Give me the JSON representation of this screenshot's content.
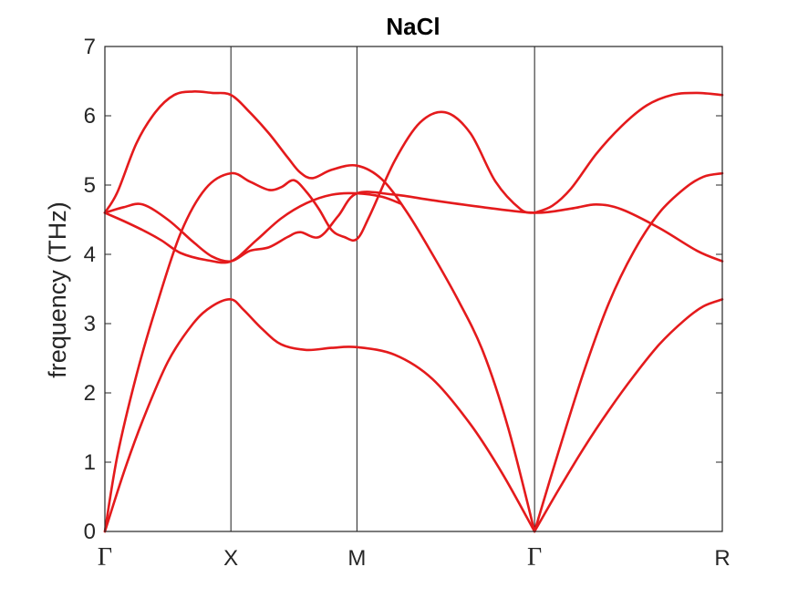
{
  "chart_data": {
    "type": "line",
    "title": "NaCl",
    "xlabel": "",
    "ylabel": "frequency (THz)",
    "ylim": [
      0,
      7
    ],
    "yticks": [
      0,
      1,
      2,
      3,
      4,
      5,
      6,
      7
    ],
    "xlim": [
      0,
      4.9
    ],
    "xticks": [
      {
        "x": 0,
        "label": "Γ"
      },
      {
        "x": 1,
        "label": "X"
      },
      {
        "x": 2,
        "label": "M"
      },
      {
        "x": 3.41,
        "label": "Γ"
      },
      {
        "x": 4.9,
        "label": "R"
      }
    ],
    "vlines": [
      1,
      2,
      3.41
    ],
    "line_color": "#e41a1c",
    "grid": false,
    "series": [
      {
        "values": [
          [
            0,
            0
          ],
          [
            0.15,
            0.85
          ],
          [
            0.3,
            1.6
          ],
          [
            0.5,
            2.45
          ],
          [
            0.7,
            3.0
          ],
          [
            0.85,
            3.25
          ],
          [
            1.0,
            3.35
          ],
          [
            1.1,
            3.2
          ],
          [
            1.25,
            2.92
          ],
          [
            1.4,
            2.7
          ],
          [
            1.6,
            2.62
          ],
          [
            1.8,
            2.65
          ],
          [
            2.0,
            2.66
          ],
          [
            2.3,
            2.55
          ],
          [
            2.6,
            2.2
          ],
          [
            2.9,
            1.55
          ],
          [
            3.15,
            0.85
          ],
          [
            3.41,
            0
          ]
        ]
      },
      {
        "values": [
          [
            0,
            0
          ],
          [
            0.1,
            1.1
          ],
          [
            0.25,
            2.25
          ],
          [
            0.4,
            3.2
          ],
          [
            0.6,
            4.3
          ],
          [
            0.8,
            4.95
          ],
          [
            1.0,
            5.17
          ],
          [
            1.15,
            5.05
          ],
          [
            1.3,
            4.93
          ],
          [
            1.4,
            4.97
          ],
          [
            1.5,
            5.07
          ],
          [
            1.6,
            4.9
          ],
          [
            1.7,
            4.65
          ],
          [
            1.8,
            4.35
          ],
          [
            1.9,
            4.25
          ],
          [
            2.0,
            4.22
          ],
          [
            2.1,
            4.55
          ],
          [
            2.3,
            5.35
          ],
          [
            2.5,
            5.9
          ],
          [
            2.7,
            6.05
          ],
          [
            2.9,
            5.75
          ],
          [
            3.1,
            5.05
          ],
          [
            3.3,
            4.65
          ],
          [
            3.41,
            4.6
          ]
        ]
      },
      {
        "values": [
          [
            0,
            4.6
          ],
          [
            0.15,
            4.68
          ],
          [
            0.3,
            4.72
          ],
          [
            0.5,
            4.5
          ],
          [
            0.7,
            4.18
          ],
          [
            0.85,
            3.97
          ],
          [
            1.0,
            3.9
          ],
          [
            1.15,
            4.05
          ],
          [
            1.3,
            4.1
          ],
          [
            1.45,
            4.25
          ],
          [
            1.55,
            4.32
          ],
          [
            1.7,
            4.25
          ],
          [
            1.85,
            4.55
          ],
          [
            2.0,
            4.88
          ],
          [
            2.3,
            4.86
          ],
          [
            2.6,
            4.78
          ],
          [
            3.0,
            4.68
          ],
          [
            3.41,
            4.6
          ],
          [
            3.7,
            4.66
          ],
          [
            3.9,
            4.72
          ],
          [
            4.1,
            4.65
          ],
          [
            4.4,
            4.38
          ],
          [
            4.7,
            4.05
          ],
          [
            4.9,
            3.9
          ]
        ]
      },
      {
        "values": [
          [
            0,
            4.6
          ],
          [
            0.15,
            4.48
          ],
          [
            0.3,
            4.35
          ],
          [
            0.45,
            4.2
          ],
          [
            0.6,
            4.02
          ],
          [
            0.8,
            3.92
          ],
          [
            1.0,
            3.9
          ],
          [
            1.2,
            4.2
          ],
          [
            1.4,
            4.52
          ],
          [
            1.6,
            4.74
          ],
          [
            1.8,
            4.86
          ],
          [
            2.0,
            4.88
          ],
          [
            2.2,
            4.83
          ],
          [
            2.35,
            4.73
          ]
        ]
      },
      {
        "values": [
          [
            0,
            4.6
          ],
          [
            0.1,
            4.9
          ],
          [
            0.25,
            5.6
          ],
          [
            0.4,
            6.05
          ],
          [
            0.55,
            6.3
          ],
          [
            0.7,
            6.35
          ],
          [
            0.85,
            6.33
          ],
          [
            1.0,
            6.3
          ],
          [
            1.15,
            6.05
          ],
          [
            1.3,
            5.75
          ],
          [
            1.45,
            5.4
          ],
          [
            1.55,
            5.18
          ],
          [
            1.65,
            5.1
          ],
          [
            1.8,
            5.22
          ],
          [
            2.0,
            5.28
          ],
          [
            2.2,
            5.08
          ],
          [
            2.4,
            4.6
          ],
          [
            2.6,
            4.0
          ],
          [
            2.8,
            3.35
          ],
          [
            3.0,
            2.6
          ],
          [
            3.2,
            1.5
          ],
          [
            3.41,
            0
          ]
        ]
      },
      {
        "values": [
          [
            3.41,
            4.6
          ],
          [
            3.55,
            4.7
          ],
          [
            3.7,
            4.95
          ],
          [
            3.9,
            5.45
          ],
          [
            4.1,
            5.85
          ],
          [
            4.3,
            6.15
          ],
          [
            4.5,
            6.3
          ],
          [
            4.7,
            6.33
          ],
          [
            4.9,
            6.3
          ]
        ]
      },
      {
        "values": [
          [
            3.41,
            0
          ],
          [
            3.6,
            1.15
          ],
          [
            3.8,
            2.3
          ],
          [
            4.0,
            3.3
          ],
          [
            4.2,
            4.05
          ],
          [
            4.4,
            4.6
          ],
          [
            4.6,
            4.95
          ],
          [
            4.75,
            5.12
          ],
          [
            4.9,
            5.17
          ]
        ]
      },
      {
        "values": [
          [
            3.41,
            0
          ],
          [
            3.6,
            0.6
          ],
          [
            3.8,
            1.2
          ],
          [
            4.0,
            1.75
          ],
          [
            4.2,
            2.25
          ],
          [
            4.4,
            2.7
          ],
          [
            4.6,
            3.05
          ],
          [
            4.75,
            3.25
          ],
          [
            4.9,
            3.35
          ]
        ]
      }
    ]
  }
}
